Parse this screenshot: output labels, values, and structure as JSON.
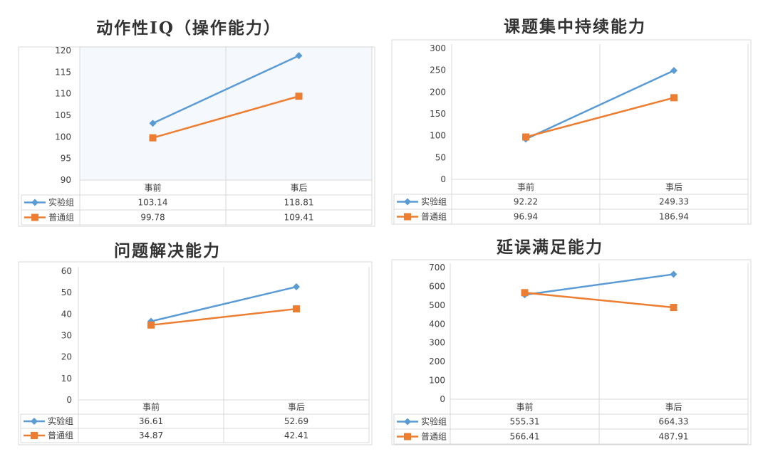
{
  "colors": {
    "experimental": "#5B9BD5",
    "control": "#ED7D31",
    "grid": "#D9D9D9",
    "text": "#404040",
    "background_panel1": "#F5F8FC"
  },
  "chart_data": [
    {
      "type": "line",
      "title": "动作性IQ（操作能力）",
      "categories": [
        "事前",
        "事后"
      ],
      "ylim": [
        90,
        120
      ],
      "yticks": [
        90,
        95,
        100,
        105,
        110,
        115,
        120
      ],
      "yticks_labels": [
        "90",
        "95",
        "100",
        "105",
        "110",
        "115",
        "120"
      ],
      "series": [
        {
          "name": "实验组",
          "values": [
            103.14,
            118.81
          ],
          "labels": [
            "103.14",
            "118.81"
          ]
        },
        {
          "name": "普通组",
          "values": [
            99.78,
            109.41
          ],
          "labels": [
            "99.78",
            "109.41"
          ]
        }
      ]
    },
    {
      "type": "line",
      "title": "课题集中持续能力",
      "categories": [
        "事前",
        "事后"
      ],
      "ylim": [
        0,
        300
      ],
      "yticks": [
        0,
        50,
        100,
        150,
        200,
        250,
        300
      ],
      "yticks_labels": [
        "0",
        "50",
        "100",
        "150",
        "200",
        "250",
        "300"
      ],
      "series": [
        {
          "name": "实验组",
          "values": [
            92.22,
            249.33
          ],
          "labels": [
            "92.22",
            "249.33"
          ]
        },
        {
          "name": "普通组",
          "values": [
            96.94,
            186.94
          ],
          "labels": [
            "96.94",
            "186.94"
          ]
        }
      ]
    },
    {
      "type": "line",
      "title": "问题解决能力",
      "categories": [
        "事前",
        "事后"
      ],
      "ylim": [
        0,
        60
      ],
      "yticks": [
        0,
        10,
        20,
        30,
        40,
        50,
        60
      ],
      "yticks_labels": [
        "0",
        "10",
        "20",
        "30",
        "40",
        "50",
        "60"
      ],
      "series": [
        {
          "name": "实验组",
          "values": [
            36.61,
            52.69
          ],
          "labels": [
            "36.61",
            "52.69"
          ]
        },
        {
          "name": "普通组",
          "values": [
            34.87,
            42.41
          ],
          "labels": [
            "34.87",
            "42.41"
          ]
        }
      ]
    },
    {
      "type": "line",
      "title": "延误满足能力",
      "categories": [
        "事前",
        "事后"
      ],
      "ylim": [
        0,
        700
      ],
      "yticks": [
        0,
        100,
        200,
        300,
        400,
        500,
        600,
        700
      ],
      "yticks_labels": [
        "0",
        "100",
        "200",
        "300",
        "400",
        "500",
        "600",
        "700"
      ],
      "series": [
        {
          "name": "实验组",
          "values": [
            555.31,
            664.33
          ],
          "labels": [
            "555.31",
            "664.33"
          ]
        },
        {
          "name": "普通组",
          "values": [
            566.41,
            487.91
          ],
          "labels": [
            "566.41",
            "487.91"
          ]
        }
      ]
    }
  ]
}
